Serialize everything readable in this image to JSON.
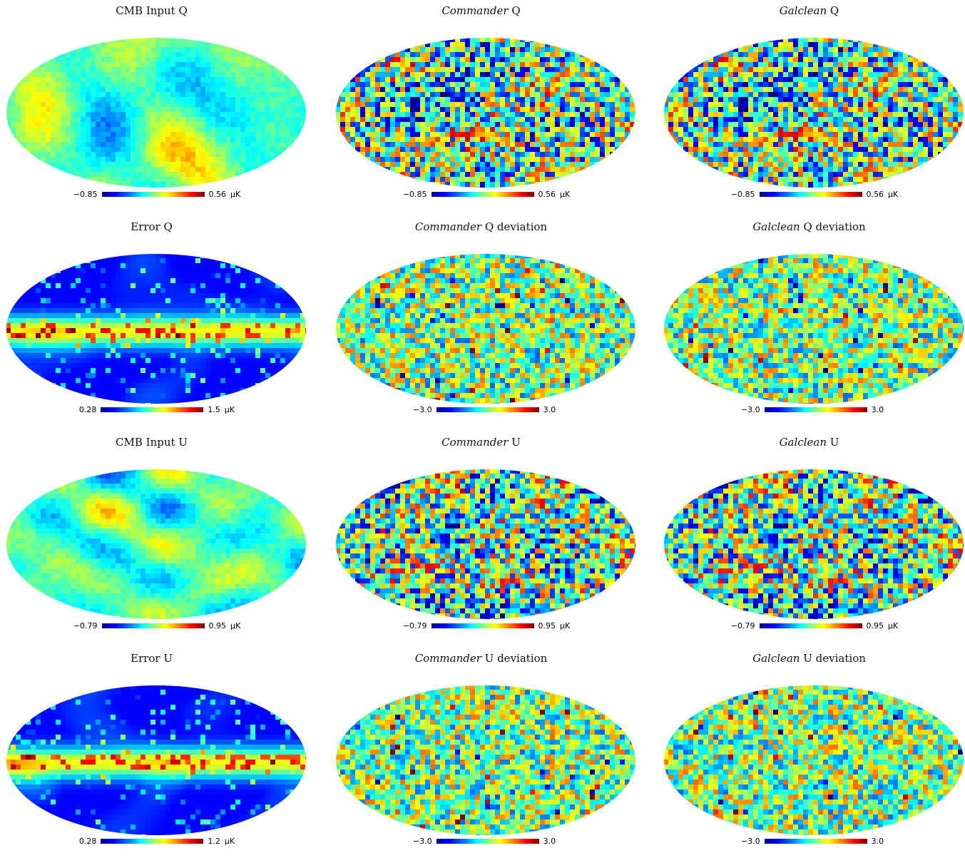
{
  "panels": [
    {
      "title_main": "CMB Input Q",
      "title_italic": "",
      "title_rest": "",
      "cbar_min": "−0.85",
      "cbar_max": "0.56",
      "unit": "μK",
      "style": "smooth",
      "seed": 11
    },
    {
      "title_main": "",
      "title_italic": "Commander",
      "title_rest": " Q",
      "cbar_min": "−0.85",
      "cbar_max": "0.56",
      "unit": "μK",
      "style": "noisy",
      "seed": 12
    },
    {
      "title_main": "",
      "title_italic": "Galclean",
      "title_rest": " Q",
      "cbar_min": "−0.85",
      "cbar_max": "0.56",
      "unit": "μK",
      "style": "noisy",
      "seed": 12
    },
    {
      "title_main": "Error Q",
      "title_italic": "",
      "title_rest": "",
      "cbar_min": "0.28",
      "cbar_max": "1.5",
      "unit": "μK",
      "style": "error",
      "seed": 21
    },
    {
      "title_main": "",
      "title_italic": "Commander",
      "title_rest": " Q deviation",
      "cbar_min": "−3.0",
      "cbar_max": "3.0",
      "unit": "",
      "style": "deviation",
      "seed": 22
    },
    {
      "title_main": "",
      "title_italic": "Galclean",
      "title_rest": " Q deviation",
      "cbar_min": "−3.0",
      "cbar_max": "3.0",
      "unit": "",
      "style": "deviation",
      "seed": 23
    },
    {
      "title_main": "CMB Input U",
      "title_italic": "",
      "title_rest": "",
      "cbar_min": "−0.79",
      "cbar_max": "0.95",
      "unit": "μK",
      "style": "smooth",
      "seed": 31
    },
    {
      "title_main": "",
      "title_italic": "Commander",
      "title_rest": " U",
      "cbar_min": "−0.79",
      "cbar_max": "0.95",
      "unit": "μK",
      "style": "noisy",
      "seed": 32
    },
    {
      "title_main": "",
      "title_italic": "Galclean",
      "title_rest": " U",
      "cbar_min": "−0.79",
      "cbar_max": "0.95",
      "unit": "μK",
      "style": "noisy",
      "seed": 32
    },
    {
      "title_main": "Error U",
      "title_italic": "",
      "title_rest": "",
      "cbar_min": "0.28",
      "cbar_max": "1.2",
      "unit": "μK",
      "style": "error",
      "seed": 41
    },
    {
      "title_main": "",
      "title_italic": "Commander",
      "title_rest": " U deviation",
      "cbar_min": "−3.0",
      "cbar_max": "3.0",
      "unit": "",
      "style": "deviation",
      "seed": 42
    },
    {
      "title_main": "",
      "title_italic": "Galclean",
      "title_rest": " U deviation",
      "cbar_min": "−3.0",
      "cbar_max": "3.0",
      "unit": "",
      "style": "deviation",
      "seed": 43
    }
  ],
  "colormap": [
    "#00008f",
    "#0000ff",
    "#0080ff",
    "#00ffff",
    "#80ff80",
    "#ffff00",
    "#ff8000",
    "#ff0000",
    "#800000"
  ]
}
